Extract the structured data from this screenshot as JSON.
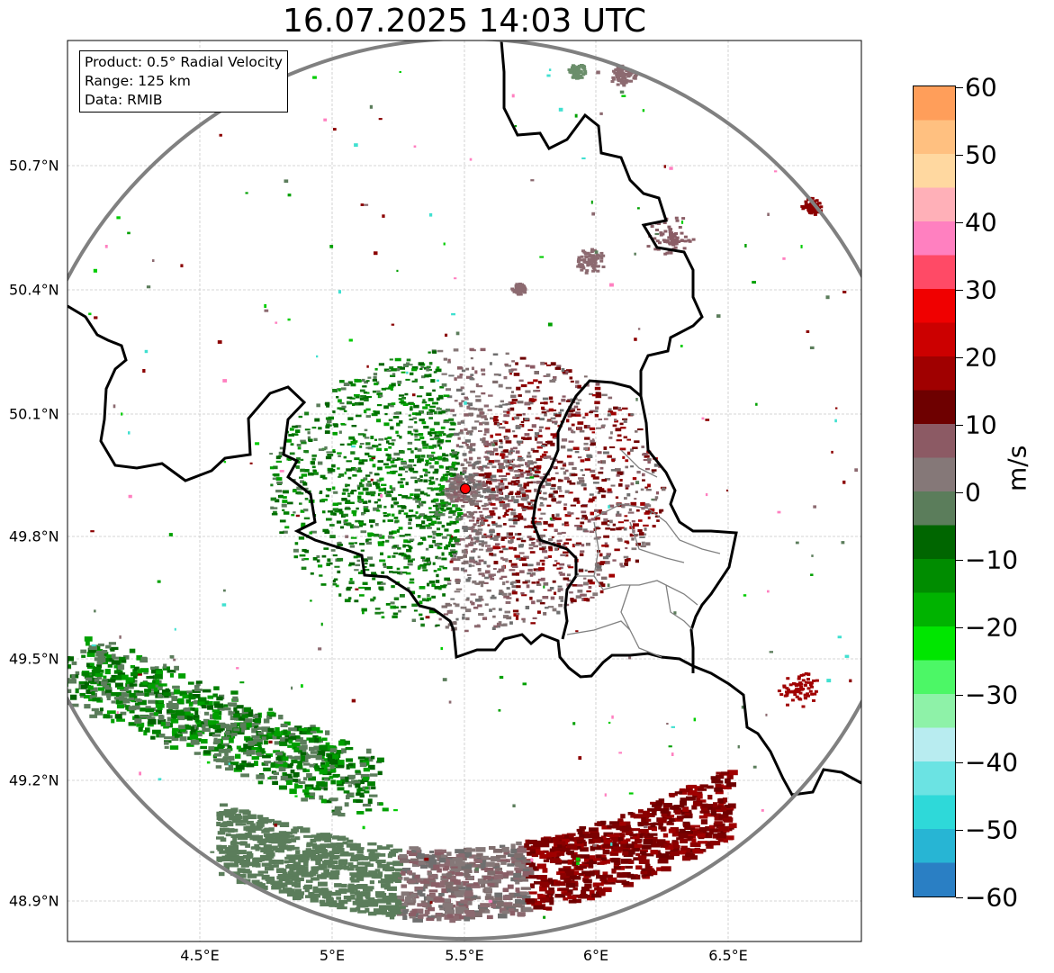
{
  "title": "16.07.2025 14:03 UTC",
  "infobox": {
    "product": "Product: 0.5° Radial Velocity",
    "range": "Range: 125 km",
    "data": "Data: RMIB"
  },
  "lat_labels": [
    "50.7°N",
    "50.4°N",
    "50.1°N",
    "49.8°N",
    "49.5°N",
    "49.2°N",
    "48.9°N"
  ],
  "lon_labels": [
    "4.5°E",
    "5°E",
    "5.5°E",
    "6°E",
    "6.5°E"
  ],
  "colorbar": {
    "unit": "m/s",
    "ticks": [
      "60",
      "50",
      "40",
      "30",
      "20",
      "10",
      "0",
      "−10",
      "−20",
      "−30",
      "−40",
      "−50",
      "−60"
    ],
    "stops": [
      "#2a7fc4",
      "#27b5d4",
      "#2ed9d9",
      "#6be3e3",
      "#b8ecf0",
      "#8ef2a8",
      "#4cf766",
      "#00e600",
      "#00b300",
      "#008c00",
      "#006600",
      "#5b7d5b",
      "#857878",
      "#8c5a64",
      "#6e0000",
      "#a00000",
      "#cc0000",
      "#f00000",
      "#ff4a66",
      "#ff80c0",
      "#ffb0b8",
      "#ffd8a0",
      "#ffc080",
      "#ff9e5a"
    ]
  },
  "radar_site": {
    "lon": 5.505,
    "lat": 49.914
  }
}
